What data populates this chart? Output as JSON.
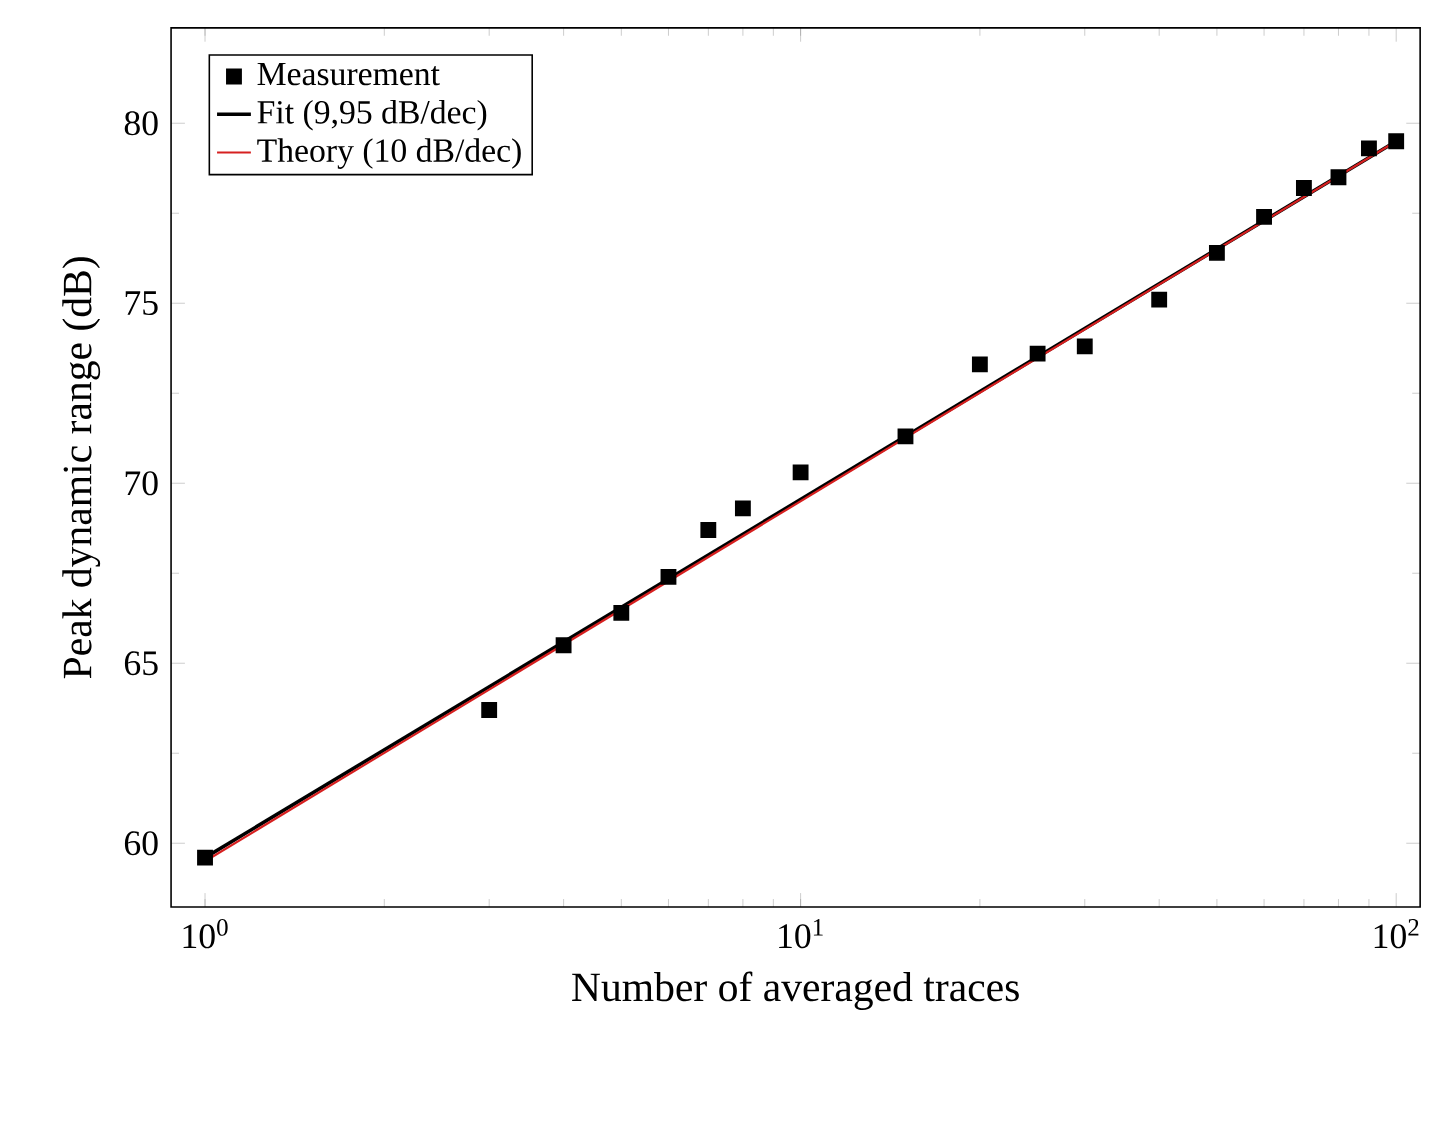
{
  "chart_data": {
    "type": "scatter",
    "xlabel": "Number of averaged traces",
    "ylabel": "Peak dynamic range (dB)",
    "log": "x",
    "xlim": [
      0.877,
      109.7
    ],
    "ylim": [
      58.23,
      82.65
    ],
    "xticks": [
      {
        "value": 1,
        "label": "10$^{0}$"
      },
      {
        "value": 10,
        "label": "10$^{1}$"
      },
      {
        "value": 100,
        "label": "10$^{2}$"
      }
    ],
    "yticks": [
      60,
      65,
      70,
      75,
      80
    ],
    "legend": "top left",
    "grid": false,
    "series": [
      {
        "name": "Measurement",
        "marker": "square",
        "color": "#000000",
        "x": [
          1,
          3,
          4,
          5,
          6,
          7,
          8,
          10,
          15,
          20,
          25,
          30,
          40,
          50,
          60,
          70,
          80,
          90,
          100
        ],
        "values": [
          59.6,
          63.7,
          65.5,
          66.4,
          67.4,
          68.7,
          69.3,
          70.3,
          71.3,
          73.3,
          73.6,
          73.8,
          75.1,
          76.4,
          77.4,
          78.2,
          78.5,
          79.3,
          79.5
        ]
      },
      {
        "name": "Fit (9,95 dB/dec)",
        "type": "line",
        "line_style": "solid",
        "color": "#000000",
        "x": [
          1,
          100
        ],
        "values": [
          59.6,
          79.5
        ]
      },
      {
        "name": "Theory (10 dB/dec)",
        "type": "line",
        "line_style": "solid",
        "color": "#d62020",
        "x": [
          1,
          100
        ],
        "values": [
          59.5,
          79.5
        ]
      }
    ]
  }
}
